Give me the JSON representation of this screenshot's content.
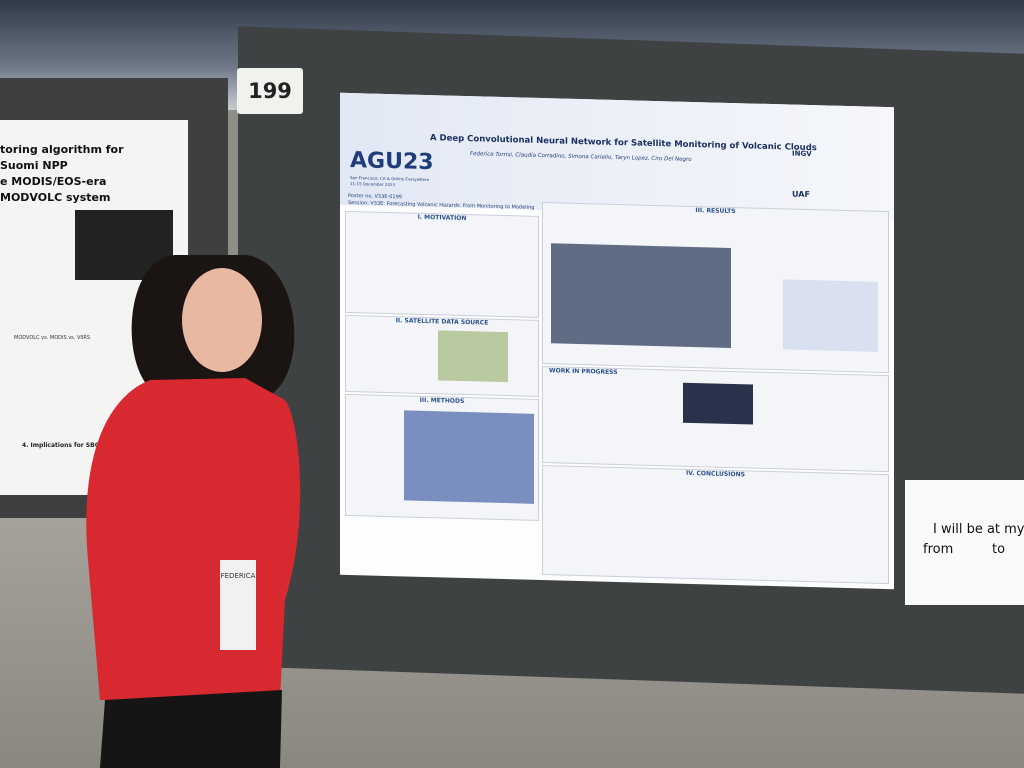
{
  "booth_number": "199",
  "left_poster": {
    "title_lines": [
      "toring algorithm for Suomi NPP",
      "e MODIS/EOS-era MODVOLC system"
    ],
    "chart_label": "MODVOLC vs. MODIS vs. VIIRS",
    "section": "4. Implications for SBG"
  },
  "poster": {
    "logo": "AGU23",
    "logo_sub": "San Francisco, CA & Online Everywhere",
    "dates": "11-15 December 2023",
    "title": "A Deep Convolutional Neural Network for Satellite Monitoring of Volcanic Clouds",
    "authors": "Federica Torrisi, Claudia Corradino, Simona Cariello, Taryn Lopez, Ciro Del Negro",
    "poster_no": "Poster no. V33E-0199",
    "session": "Session: V33E: Forecasting Volcanic Hazards: From Monitoring to Modeling",
    "institution_logos": [
      "INGV",
      "UAF"
    ],
    "sections": [
      "I. MOTIVATION",
      "II. SATELLITE DATA SOURCE",
      "III. METHODS",
      "III. RESULTS",
      "WORK IN PROGRESS",
      "IV. CONCLUSIONS"
    ]
  },
  "badge": "FEDERICA",
  "sign": {
    "line1": "I will be at my p",
    "from": "from",
    "to": "to"
  }
}
